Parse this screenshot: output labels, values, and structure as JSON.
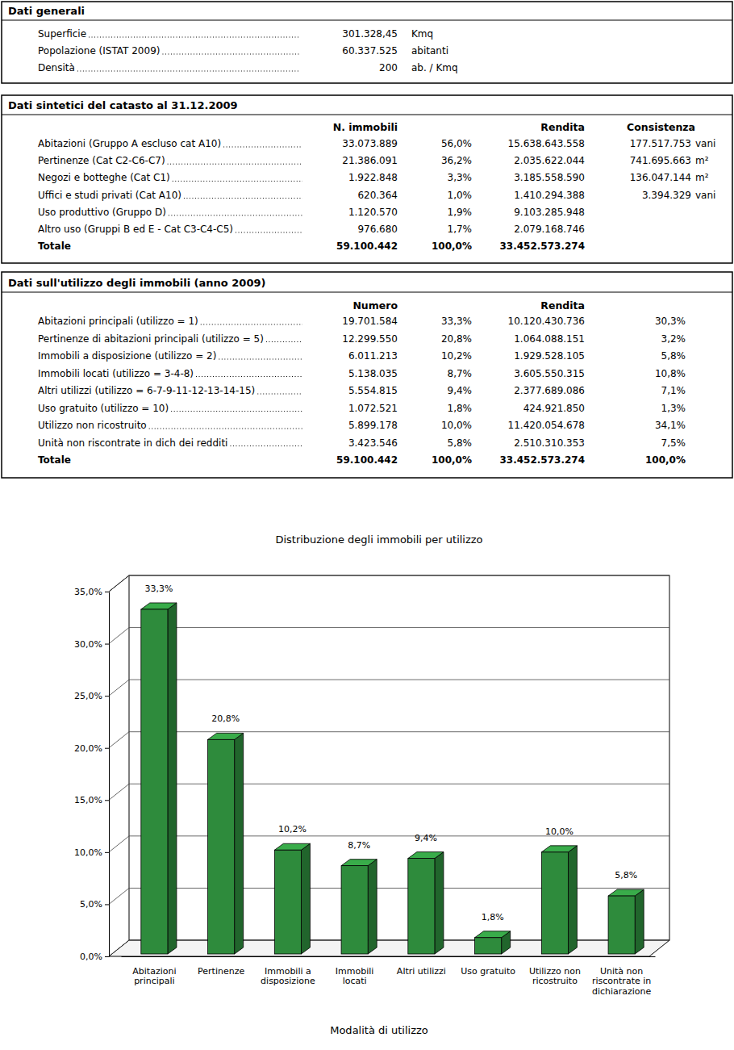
{
  "general": {
    "title": "Dati generali",
    "rows": [
      {
        "label": "Superficie",
        "value": "301.328,45",
        "unit": "Kmq"
      },
      {
        "label": "Popolazione (ISTAT 2009)",
        "value": "60.337.525",
        "unit": "abitanti"
      },
      {
        "label": "Densità",
        "value": "200",
        "unit": "ab. / Kmq"
      }
    ]
  },
  "catasto": {
    "title": "Dati sintetici del catasto al 31.12.2009",
    "header": {
      "n": "N. immobili",
      "rendita": "Rendita",
      "consistenza": "Consistenza"
    },
    "rows": [
      {
        "label": "Abitazioni (Gruppo A escluso cat A10)",
        "n": "33.073.889",
        "pct": "56,0%",
        "rendita": "15.638.643.558",
        "consistenza": "177.517.753",
        "unit": "vani"
      },
      {
        "label": "Pertinenze (Cat C2-C6-C7)",
        "n": "21.386.091",
        "pct": "36,2%",
        "rendita": "2.035.622.044",
        "consistenza": "741.695.663",
        "unit": "m²"
      },
      {
        "label": "Negozi e botteghe (Cat C1)",
        "n": "1.922.848",
        "pct": "3,3%",
        "rendita": "3.185.558.590",
        "consistenza": "136.047.144",
        "unit": "m²"
      },
      {
        "label": "Uffici e studi privati (Cat A10)",
        "n": "620.364",
        "pct": "1,0%",
        "rendita": "1.410.294.388",
        "consistenza": "3.394.329",
        "unit": "vani"
      },
      {
        "label": "Uso produttivo (Gruppo D)",
        "n": "1.120.570",
        "pct": "1,9%",
        "rendita": "9.103.285.948"
      },
      {
        "label": "Altro uso (Gruppi B ed E - Cat C3-C4-C5)",
        "n": "976.680",
        "pct": "1,7%",
        "rendita": "2.079.168.746"
      },
      {
        "label": "Totale",
        "n": "59.100.442",
        "pct": "100,0%",
        "rendita": "33.452.573.274"
      }
    ]
  },
  "utilizzo": {
    "title": "Dati sull'utilizzo degli immobili (anno 2009)",
    "header": {
      "numero": "Numero",
      "rendita": "Rendita"
    },
    "rows": [
      {
        "label": "Abitazioni principali (utilizzo = 1)",
        "numero": "19.701.584",
        "pct": "33,3%",
        "rendita": "10.120.430.736",
        "pct_rendita": "30,3%"
      },
      {
        "label": "Pertinenze di abitazioni principali (utilizzo = 5)",
        "numero": "12.299.550",
        "pct": "20,8%",
        "rendita": "1.064.088.151",
        "pct_rendita": "3,2%"
      },
      {
        "label": "Immobili a disposizione (utilizzo = 2)",
        "numero": "6.011.213",
        "pct": "10,2%",
        "rendita": "1.929.528.105",
        "pct_rendita": "5,8%"
      },
      {
        "label": "Immobili locati (utilizzo = 3-4-8)",
        "numero": "5.138.035",
        "pct": "8,7%",
        "rendita": "3.605.550.315",
        "pct_rendita": "10,8%"
      },
      {
        "label": "Altri utilizzi (utilizzo = 6-7-9-11-12-13-14-15)",
        "numero": "5.554.815",
        "pct": "9,4%",
        "rendita": "2.377.689.086",
        "pct_rendita": "7,1%"
      },
      {
        "label": "Uso gratuito (utilizzo = 10)",
        "numero": "1.072.521",
        "pct": "1,8%",
        "rendita": "424.921.850",
        "pct_rendita": "1,3%"
      },
      {
        "label": "Utilizzo non ricostruito",
        "numero": "5.899.178",
        "pct": "10,0%",
        "rendita": "11.420.054.678",
        "pct_rendita": "34,1%"
      },
      {
        "label": "Unità non riscontrate in dich dei redditi",
        "numero": "3.423.546",
        "pct": "5,8%",
        "rendita": "2.510.310.353",
        "pct_rendita": "7,5%"
      },
      {
        "label": "Totale",
        "numero": "59.100.442",
        "pct": "100,0%",
        "rendita": "33.452.573.274",
        "pct_rendita": "100,0%"
      }
    ]
  },
  "chart_data": {
    "type": "bar",
    "title": "Distribuzione degli immobili per utilizzo",
    "x_label": "Modalità di utilizzo",
    "categories": [
      "Abitazioni principali",
      "Pertinenze",
      "Immobili a disposizione",
      "Immobili locati",
      "Altri utilizzi",
      "Uso gratuito",
      "Utilizzo non ricostruito",
      "Unità non riscontrate in dichiarazione"
    ],
    "values": [
      33.3,
      20.8,
      10.2,
      8.7,
      9.4,
      1.8,
      10.0,
      5.8
    ],
    "value_labels": [
      "33,3%",
      "20,8%",
      "10,2%",
      "8,7%",
      "9,4%",
      "1,8%",
      "10,0%",
      "5,8%"
    ],
    "color": "#2e8b3c",
    "ylim": [
      0,
      35
    ],
    "yticks": [
      {
        "value": 0,
        "label": "0,0%"
      },
      {
        "value": 5,
        "label": "5,0%"
      },
      {
        "value": 10,
        "label": "10,0%"
      },
      {
        "value": 15,
        "label": "15,0%"
      },
      {
        "value": 20,
        "label": "20,0%"
      },
      {
        "value": 25,
        "label": "25,0%"
      },
      {
        "value": 30,
        "label": "30,0%"
      },
      {
        "value": 35,
        "label": "35,0%"
      }
    ],
    "grid": true,
    "data_labels": true
  }
}
